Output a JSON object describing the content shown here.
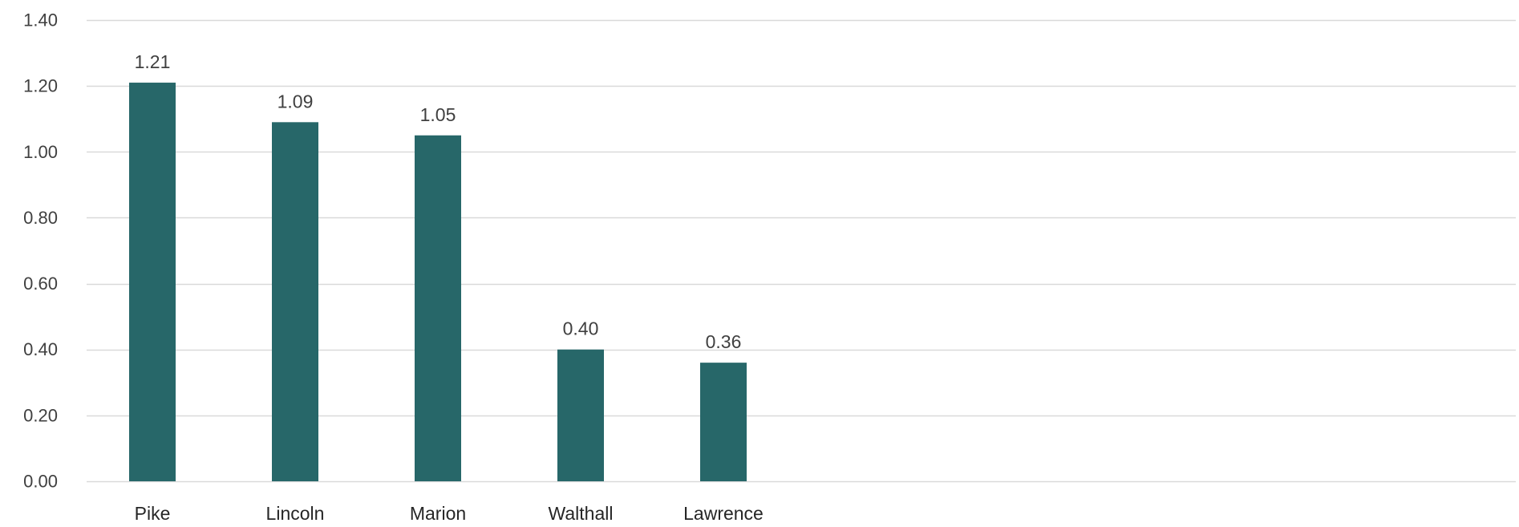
{
  "chart_data": {
    "type": "bar",
    "categories": [
      "Pike",
      "Lincoln",
      "Marion",
      "Walthall",
      "Lawrence"
    ],
    "values": [
      1.21,
      1.09,
      1.05,
      0.4,
      0.36
    ],
    "value_labels": [
      "1.21",
      "1.09",
      "1.05",
      "0.40",
      "0.36"
    ],
    "yticks": [
      0.0,
      0.2,
      0.4,
      0.6,
      0.8,
      1.0,
      1.2,
      1.4
    ],
    "ytick_labels": [
      "0.00",
      "0.20",
      "0.40",
      "0.60",
      "0.80",
      "1.00",
      "1.20",
      "1.40"
    ],
    "ylim": [
      0,
      1.4
    ],
    "grid": true,
    "legend": "none",
    "bar_color": "#276769",
    "grid_color": "#d9d9d9"
  }
}
